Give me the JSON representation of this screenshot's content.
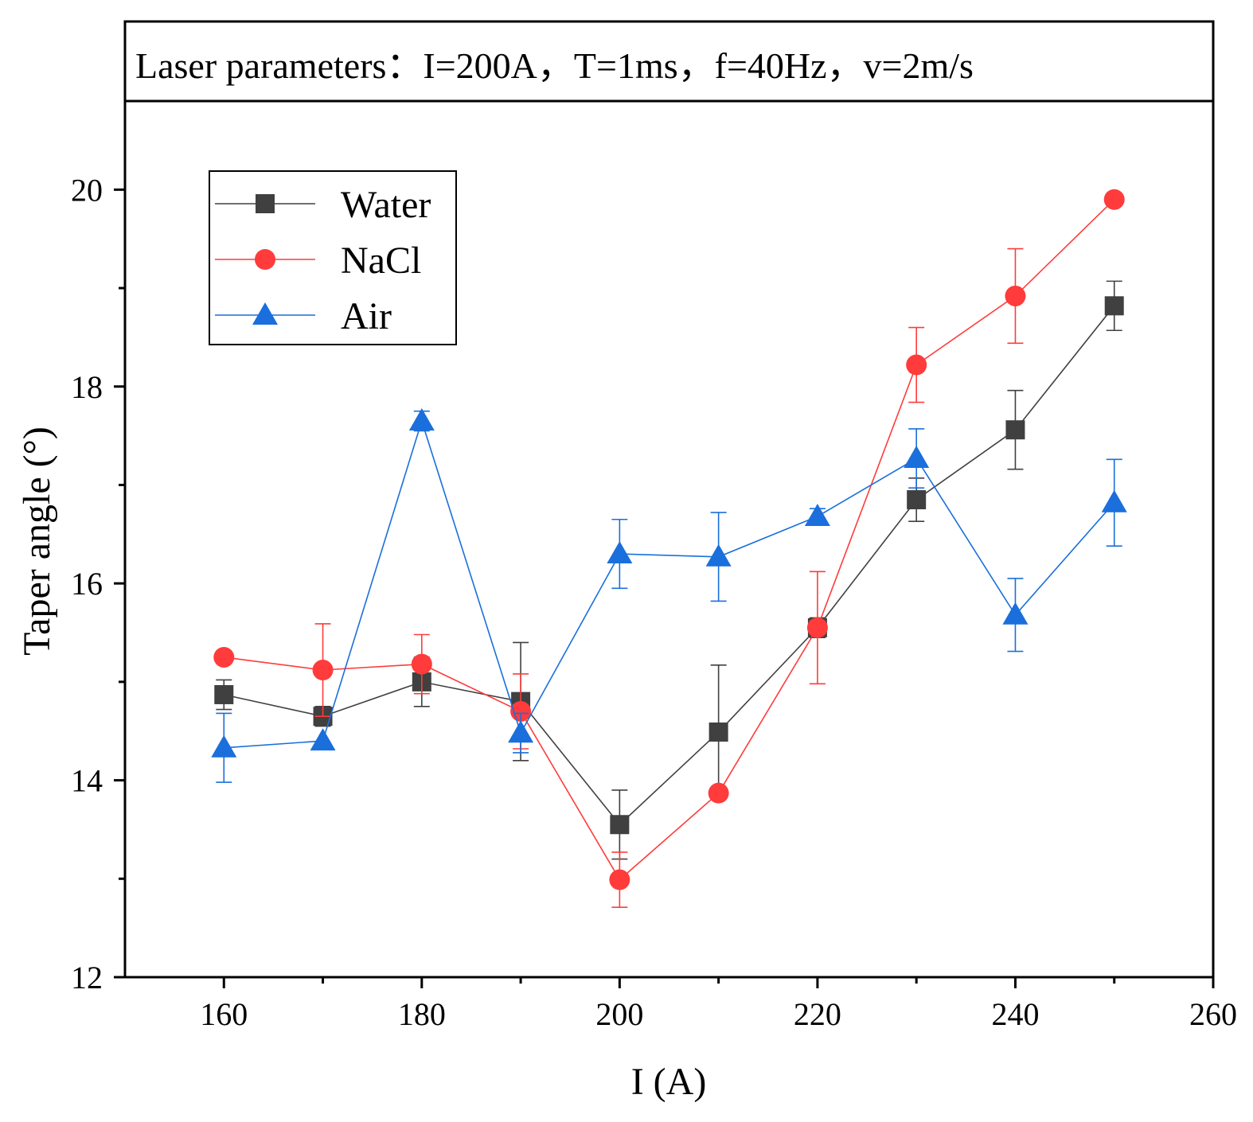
{
  "chart_data": {
    "type": "line",
    "banner": "Laser parameters：I=200A，T=1ms，f=40Hz，v=2m/s",
    "title": "",
    "xlabel": "I (A)",
    "ylabel": "Taper angle (°)",
    "xlim": [
      150,
      260
    ],
    "ylim": [
      12,
      20.9
    ],
    "xticks": [
      160,
      180,
      200,
      220,
      240,
      260
    ],
    "xticks_minor": [
      170,
      190,
      210,
      230,
      250
    ],
    "yticks": [
      12,
      14,
      16,
      18,
      20
    ],
    "yticks_minor": [
      13,
      15,
      17,
      19
    ],
    "grid": false,
    "legend_position": "top-left",
    "x": [
      160,
      170,
      180,
      190,
      200,
      210,
      220,
      230,
      240,
      250
    ],
    "series": [
      {
        "name": "Water",
        "color": "#404040",
        "marker": "square",
        "values": [
          14.87,
          14.65,
          15.0,
          14.8,
          13.55,
          14.49,
          15.55,
          16.85,
          17.56,
          18.82
        ],
        "errors": [
          0.15,
          0.1,
          0.25,
          0.6,
          0.35,
          0.68,
          0.1,
          0.22,
          0.4,
          0.25
        ]
      },
      {
        "name": "NaCl",
        "color": "#ff3b3b",
        "marker": "circle",
        "values": [
          15.25,
          15.12,
          15.18,
          14.7,
          12.99,
          13.87,
          15.55,
          18.22,
          18.92,
          19.9
        ],
        "errors": [
          0.0,
          0.47,
          0.3,
          0.38,
          0.28,
          0.0,
          0.57,
          0.38,
          0.48,
          0.0
        ]
      },
      {
        "name": "Air",
        "color": "#1a6fdc",
        "marker": "triangle",
        "values": [
          14.33,
          14.4,
          17.65,
          14.48,
          16.3,
          16.27,
          16.68,
          17.27,
          15.68,
          16.82
        ],
        "errors": [
          0.35,
          0.0,
          0.1,
          0.2,
          0.35,
          0.45,
          0.08,
          0.3,
          0.37,
          0.44
        ]
      }
    ]
  }
}
